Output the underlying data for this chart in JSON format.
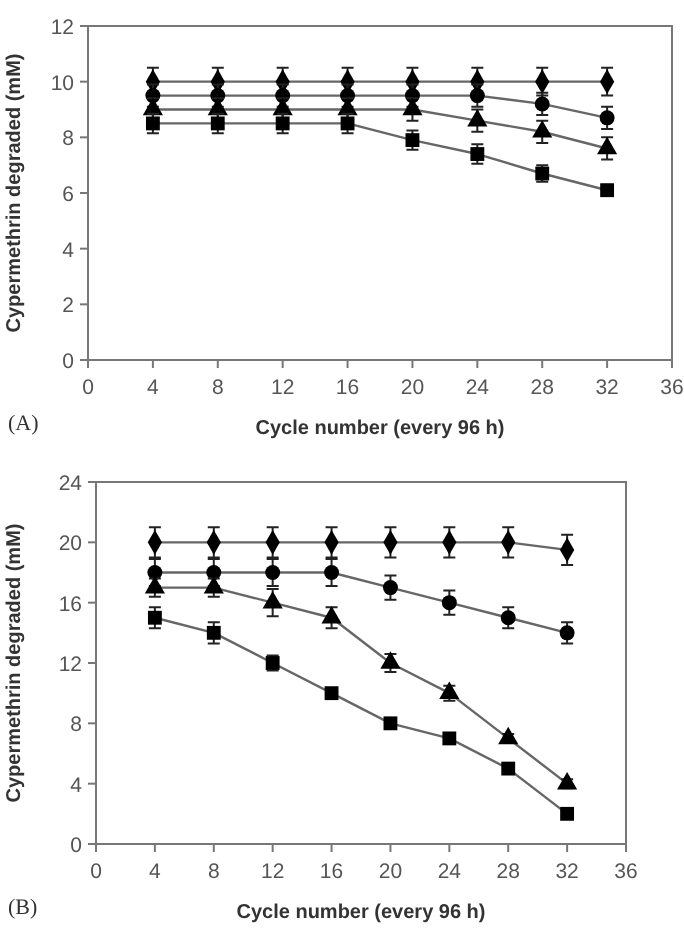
{
  "chart_data": [
    {
      "type": "line",
      "xlabel": "Cycle number (every 96 h)",
      "ylabel": "Cypermethrin degraded (mM)",
      "x": [
        4,
        8,
        12,
        16,
        20,
        24,
        28,
        32
      ],
      "xlim": [
        0,
        36
      ],
      "xticks": [
        0,
        4,
        8,
        12,
        16,
        20,
        24,
        28,
        32,
        36
      ],
      "ylim": [
        0,
        12
      ],
      "yticks": [
        0,
        2,
        4,
        6,
        8,
        10,
        12
      ],
      "grid": false,
      "line_style": "solid",
      "annotations": [
        "(A)"
      ],
      "series": [
        {
          "color": "#000000",
          "marker": "diamond",
          "values": [
            10,
            10,
            10,
            10,
            10,
            10,
            10,
            10
          ],
          "errors": [
            0.5,
            0.5,
            0.5,
            0.5,
            0.5,
            0.5,
            0.5,
            0.5
          ]
        },
        {
          "color": "#000000",
          "marker": "circle",
          "values": [
            9.5,
            9.5,
            9.5,
            9.5,
            9.5,
            9.5,
            9.2,
            8.7
          ],
          "errors": [
            0.4,
            0.4,
            0.4,
            0.4,
            0.4,
            0.4,
            0.4,
            0.4
          ]
        },
        {
          "color": "#000000",
          "marker": "triangle",
          "values": [
            9,
            9,
            9,
            9,
            9,
            8.6,
            8.2,
            7.6
          ],
          "errors": [
            0.4,
            0.4,
            0.4,
            0.4,
            0.4,
            0.4,
            0.4,
            0.4
          ]
        },
        {
          "color": "#000000",
          "marker": "square",
          "values": [
            8.5,
            8.5,
            8.5,
            8.5,
            7.9,
            7.4,
            6.7,
            6.1
          ],
          "errors": [
            0.35,
            0.35,
            0.35,
            0.35,
            0.35,
            0.35,
            0.3,
            0.2
          ]
        }
      ]
    },
    {
      "type": "line",
      "xlabel": "Cycle number (every 96 h)",
      "ylabel": "Cypermethrin degraded (mM)",
      "x": [
        4,
        8,
        12,
        16,
        20,
        24,
        28,
        32
      ],
      "xlim": [
        0,
        36
      ],
      "xticks": [
        0,
        4,
        8,
        12,
        16,
        20,
        24,
        28,
        32,
        36
      ],
      "ylim": [
        0,
        24
      ],
      "yticks": [
        0,
        4,
        8,
        12,
        16,
        20,
        24
      ],
      "grid": false,
      "line_style": "solid",
      "annotations": [
        "(B)"
      ],
      "series": [
        {
          "color": "#000000",
          "marker": "diamond",
          "values": [
            20,
            20,
            20,
            20,
            20,
            20,
            20,
            19.5
          ],
          "errors": [
            1,
            1,
            1,
            1,
            1,
            1,
            1,
            1
          ]
        },
        {
          "color": "#000000",
          "marker": "circle",
          "values": [
            18,
            18,
            18,
            18,
            17,
            16,
            15,
            14
          ],
          "errors": [
            0.9,
            0.9,
            0.9,
            0.9,
            0.8,
            0.8,
            0.7,
            0.7
          ]
        },
        {
          "color": "#000000",
          "marker": "triangle",
          "values": [
            17,
            17,
            16,
            15,
            12,
            10,
            7,
            4
          ],
          "errors": [
            0.6,
            0.6,
            0.9,
            0.7,
            0.6,
            0.5,
            0.3,
            0.3
          ]
        },
        {
          "color": "#000000",
          "marker": "square",
          "values": [
            15,
            14,
            12,
            10,
            8,
            7,
            5,
            2
          ],
          "errors": [
            0.7,
            0.7,
            0.5,
            null,
            null,
            null,
            null,
            null
          ]
        }
      ]
    }
  ]
}
